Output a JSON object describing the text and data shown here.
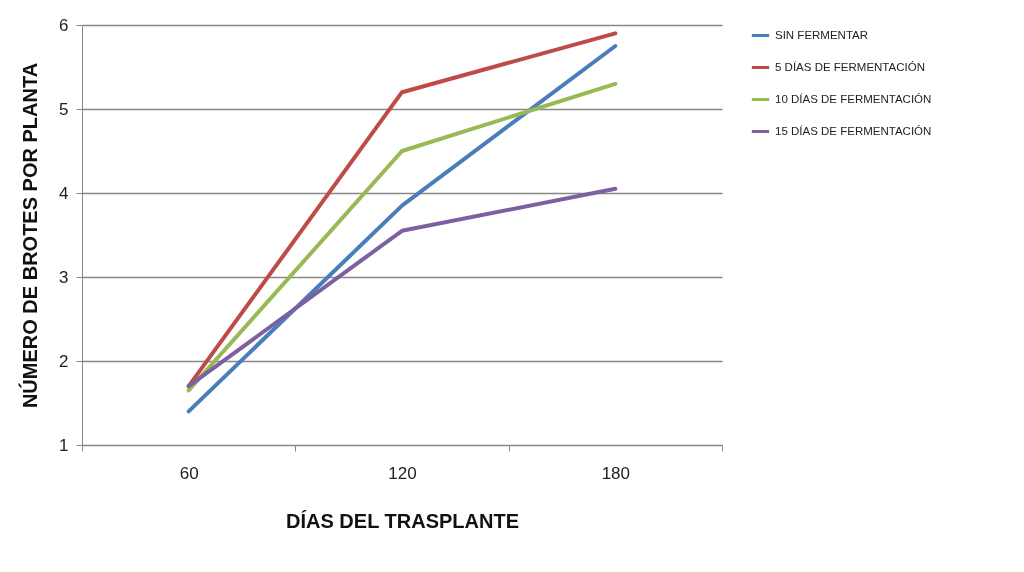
{
  "chart_data": {
    "type": "line",
    "xlabel": "DÍAS DEL TRASPLANTE",
    "ylabel": "NÚMERO DE BROTES POR PLANTA",
    "categories": [
      "60",
      "120",
      "180"
    ],
    "series": [
      {
        "name": "SIN FERMENTAR",
        "color": "#4a7ebb",
        "values": [
          1.4,
          3.85,
          5.75
        ]
      },
      {
        "name": "5 DÍAS DE FERMENTACIÓN",
        "color": "#be4b48",
        "values": [
          1.7,
          5.2,
          5.9
        ]
      },
      {
        "name": "10 DÍAS DE FERMENTACIÓN",
        "color": "#98b954",
        "values": [
          1.65,
          4.5,
          5.3
        ]
      },
      {
        "name": "15 DÍAS DE FERMENTACIÓN",
        "color": "#7d60a0",
        "values": [
          1.7,
          3.55,
          4.05
        ]
      }
    ],
    "ylim": [
      1,
      6
    ],
    "yticks": [
      1,
      2,
      3,
      4,
      5,
      6
    ],
    "grid": "y",
    "legend": "right",
    "marker": "none",
    "line_style": "solid"
  }
}
